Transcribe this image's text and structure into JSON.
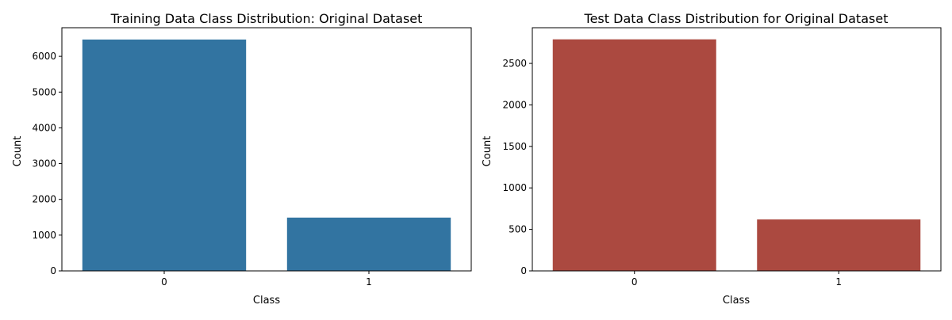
{
  "chart_data": [
    {
      "type": "bar",
      "title": "Training Data Class Distribution: Original Dataset",
      "xlabel": "Class",
      "ylabel": "Count",
      "categories": [
        "0",
        "1"
      ],
      "values": [
        6470,
        1490
      ],
      "ylim": [
        0,
        6800
      ],
      "yticks": [
        0,
        1000,
        2000,
        3000,
        4000,
        5000,
        6000
      ],
      "color": "#3274a1",
      "grid": false,
      "legend": "none"
    },
    {
      "type": "bar",
      "title": "Test Data Class Distribution for Original Dataset",
      "xlabel": "Class",
      "ylabel": "Count",
      "categories": [
        "0",
        "1"
      ],
      "values": [
        2790,
        620
      ],
      "ylim": [
        0,
        2930
      ],
      "yticks": [
        0,
        500,
        1000,
        1500,
        2000,
        2500
      ],
      "color": "#ab4940",
      "grid": false,
      "legend": "none"
    }
  ]
}
